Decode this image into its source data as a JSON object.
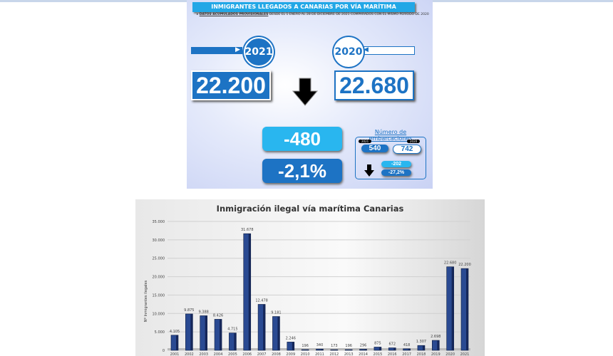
{
  "header": {
    "title": "INMIGRANTES LLEGADOS A CANARIAS POR VÍA MARÍTIMA",
    "subtitle_bold": "DATOS ACUMULADOS PROVISIONALES",
    "subtitle_rest": " DESDE EL 1 ENERO AL 28 DE DICIEMBRE DE 2021 COMPARADOS CON EL MISMO PERÍODO DE 2020"
  },
  "current": {
    "year": "2021",
    "value": "22.200"
  },
  "previous": {
    "year": "2020",
    "value": "22.680"
  },
  "trend_icon": "arrow-down-icon",
  "difference": {
    "absolute": "-480",
    "percent": "-2,1%"
  },
  "boats": {
    "title": "Número de embarcaciones",
    "year_current": "2021",
    "value_current": "540",
    "year_previous": "2020",
    "value_previous": "742",
    "diff_absolute": "-202",
    "diff_percent": "-27,2%"
  },
  "colors": {
    "accent": "#1d73c4",
    "cyan": "#22a7e6",
    "bar": "#1f3a7a"
  },
  "chart_data": {
    "type": "bar",
    "title": "Inmigración ilegal vía marítima Canarias",
    "ylabel": "Nº Inmigrantes ilegales",
    "xlabel": "",
    "categories": [
      "2001",
      "2002",
      "2003",
      "2004",
      "2005",
      "2006",
      "2007",
      "2008",
      "2009",
      "2010",
      "2011",
      "2012",
      "2013",
      "2014",
      "2015",
      "2016",
      "2017",
      "2018",
      "2019",
      "2020",
      "2021"
    ],
    "values": [
      4105,
      9875,
      9388,
      8426,
      4715,
      31678,
      12478,
      9181,
      2246,
      196,
      340,
      173,
      196,
      296,
      875,
      672,
      418,
      1307,
      2698,
      22680,
      22200
    ],
    "labels": [
      "4.105",
      "9.875",
      "9.388",
      "8.426",
      "4.715",
      "31.678",
      "12.478",
      "9.181",
      "2.246",
      "196",
      "340",
      "173",
      "196",
      "296",
      "875",
      "672",
      "418",
      "1.307",
      "2.698",
      "22.680",
      "22.200"
    ],
    "yticks": [
      "0",
      "5.000",
      "10.000",
      "15.000",
      "20.000",
      "25.000",
      "30.000",
      "35.000"
    ],
    "ylim": [
      0,
      35000
    ],
    "grid": true
  }
}
